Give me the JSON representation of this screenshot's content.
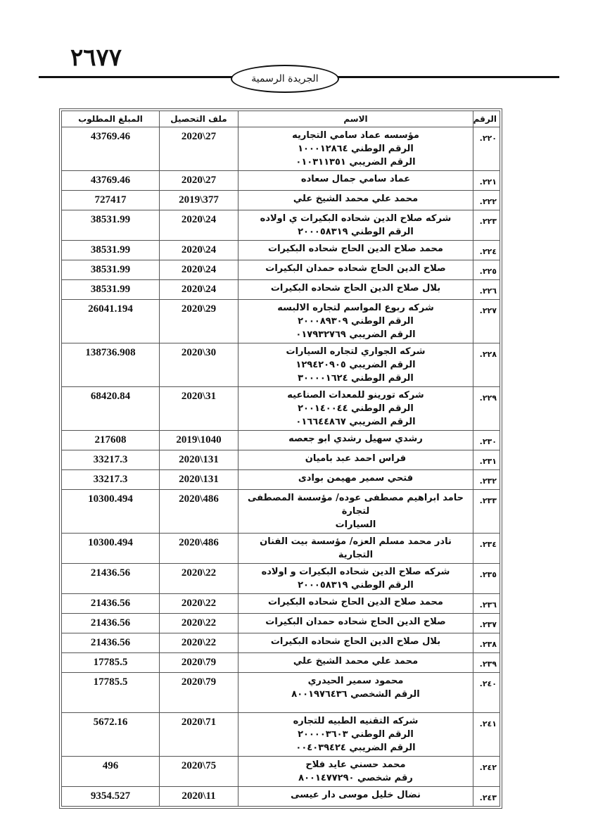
{
  "header": {
    "page_number": "٢٦٧٧",
    "publication": "الجريدة الرسمية"
  },
  "table": {
    "columns": [
      "الرقم",
      "الاسم",
      "ملف التحصيل",
      "المبلغ المطلوب"
    ],
    "rows": [
      {
        "no": "٢٢٠.",
        "name": [
          "مؤسسه عماد سامي التجاريه",
          "الرقم الوطني ١٠٠٠١٢٨٦٤",
          "الرقم الضريبي ٠١٠٣١١٣٥١"
        ],
        "file": "27\\2020",
        "amount": "43769.46"
      },
      {
        "no": "٢٢١.",
        "name": [
          "عماد سامي جمال سعاده"
        ],
        "file": "27\\2020",
        "amount": "43769.46"
      },
      {
        "no": "٢٢٢.",
        "name": [
          "محمد علي محمد الشيخ علي"
        ],
        "file": "377\\2019",
        "amount": "727417"
      },
      {
        "no": "٢٢٣.",
        "name": [
          "شركه صلاح الدين شحاده البكيرات ي اولاده",
          "الرقم الوطني ٢٠٠٠٥٨٣١٩"
        ],
        "file": "24\\2020",
        "amount": "38531.99"
      },
      {
        "no": "٢٢٤.",
        "name": [
          "محمد صلاح الدين الحاج شحاده البكيرات"
        ],
        "file": "24\\2020",
        "amount": "38531.99"
      },
      {
        "no": "٢٢٥.",
        "name": [
          "صلاح الدين الحاج شحاده حمدان البكيرات"
        ],
        "file": "24\\2020",
        "amount": "38531.99"
      },
      {
        "no": "٢٢٦.",
        "name": [
          "بلال صلاح الدين الحاج شحاده البكيرات"
        ],
        "file": "24\\2020",
        "amount": "38531.99"
      },
      {
        "no": "٢٢٧.",
        "name": [
          "شركه ربوع المواسم لتجاره الالبسه",
          "الرقم الوطني ٢٠٠٠٨٩٣٠٩",
          "الرقم الضريبي ٠١٧٩٣٢٧٦٩"
        ],
        "file": "29\\2020",
        "amount": "26041.194"
      },
      {
        "no": "٢٢٨.",
        "name": [
          "شركه الجواري لتجاره السيارات",
          "الرقم الضريبي ١٢٩٤٢٠٩٠٥",
          "الرقم الوطني ٣٠٠٠٠١٦٢٤"
        ],
        "file": "30\\2020",
        "amount": "138736.908"
      },
      {
        "no": "٢٢٩.",
        "name": [
          "شركه تورينو للمعدات الصناعيه",
          "الرقم الوطني ٢٠٠١٤٠٠٤٤",
          "الرقم الضريبي ٠١٦٦٤٤٨٦٧"
        ],
        "file": "31\\2020",
        "amount": "68420.84"
      },
      {
        "no": "٢٣٠.",
        "name": [
          "رشدي سهيل رشدي ابو جعصه"
        ],
        "file": "1040\\2019",
        "amount": "217608"
      },
      {
        "no": "٢٣١.",
        "name": [
          "فراس احمد عبد باميان"
        ],
        "file": "131\\2020",
        "amount": "33217.3"
      },
      {
        "no": "٢٣٢.",
        "name": [
          "فتحي سمير مهيمن بوادى"
        ],
        "file": "131\\2020",
        "amount": "33217.3"
      },
      {
        "no": "٢٣٣.",
        "name": [
          "حامد ابراهيم مصطفى عوده/ مؤسسة المصطفى لتجارة",
          "السيارات"
        ],
        "file": "486\\2020",
        "amount": "10300.494"
      },
      {
        "no": "٢٣٤.",
        "name": [
          "نادر محمد مسلم العزه/ مؤسسة بيت الفنان التجارية"
        ],
        "file": "486\\2020",
        "amount": "10300.494"
      },
      {
        "no": "٢٣٥.",
        "name": [
          "شركه صلاح الدين شحاده البكيرات و اولاده",
          "الرقم الوطني ٢٠٠٠٥٨٣١٩"
        ],
        "file": "22\\2020",
        "amount": "21436.56"
      },
      {
        "no": "٢٣٦.",
        "name": [
          "محمد صلاح الدين الحاج شحاده البكيرات"
        ],
        "file": "22\\2020",
        "amount": "21436.56"
      },
      {
        "no": "٢٣٧.",
        "name": [
          "صلاح الدين الحاج شحاده حمدان البكيرات"
        ],
        "file": "22\\2020",
        "amount": "21436.56"
      },
      {
        "no": "٢٣٨.",
        "name": [
          "بلال صلاح الدين الحاج شحاده البكيرات"
        ],
        "file": "22\\2020",
        "amount": "21436.56"
      },
      {
        "no": "٢٣٩.",
        "name": [
          "محمد علي محمد الشيخ علي"
        ],
        "file": "79\\2020",
        "amount": "17785.5"
      },
      {
        "no": "٢٤٠.",
        "name": [
          "محمود سمير الحيدري",
          "الرقم الشخصي ٨٠٠١٩٧٦٤٣٦"
        ],
        "file": "79\\2020",
        "amount": "17785.5"
      },
      {
        "no": "٢٤١.",
        "name": [
          "شركه التقنيه الطبيه للتجاره",
          "الرقم الوطني ٢٠٠٠٠٣٦٠٣",
          "الرقم الضريبي ٠٠٤٠٣٩٤٢٤"
        ],
        "file": "71\\2020",
        "amount": "5672.16"
      },
      {
        "no": "٢٤٢.",
        "name": [
          "محمد حسني عايد فلاح",
          "رقم شخصي ٨٠٠١٤٧٧٢٩٠"
        ],
        "file": "75\\2020",
        "amount": "496"
      },
      {
        "no": "٢٤٣.",
        "name": [
          "نضال خليل موسى دار عيسى"
        ],
        "file": "11\\2020",
        "amount": "9354.527"
      }
    ]
  }
}
